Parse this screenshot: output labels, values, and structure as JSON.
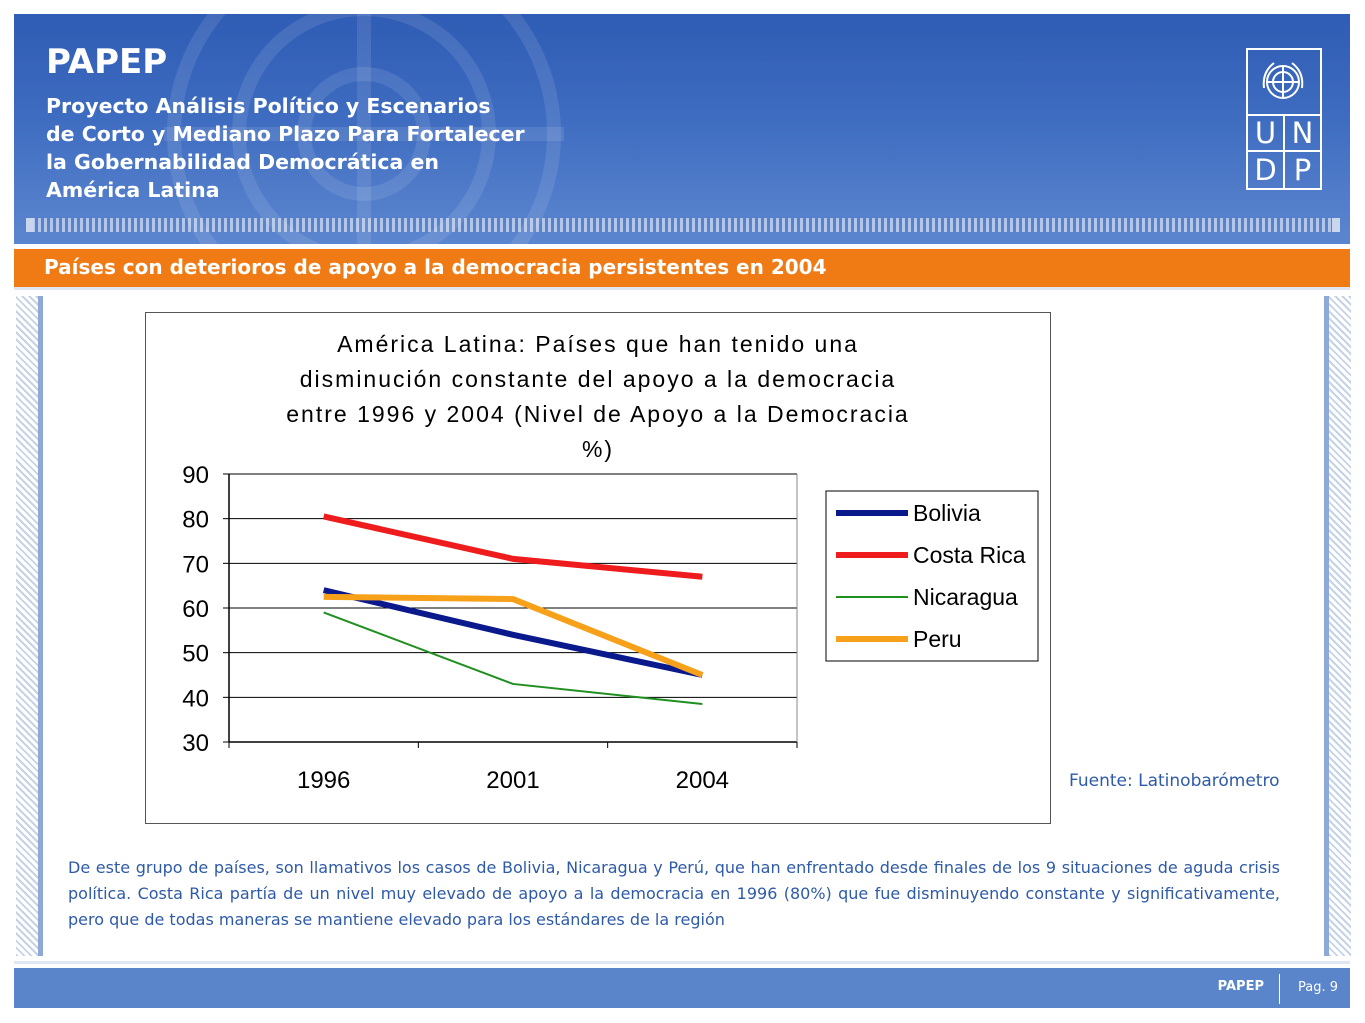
{
  "header": {
    "brand": "PAPEP",
    "subtitle_lines": [
      "Proyecto Análisis Político y Escenarios",
      "de Corto y Mediano Plazo Para Fortalecer",
      "la Gobernabilidad Democrática en",
      "América Latina"
    ],
    "logo_letters": [
      "U",
      "N",
      "D",
      "P"
    ]
  },
  "section": {
    "title": "Países con deterioros de apoyo a la democracia persistentes en 2004"
  },
  "chart_data": {
    "type": "line",
    "title_lines": [
      "América Latina:  Países que han tenido una",
      "disminución constante del apoyo a la democracia",
      "entre 1996 y 2004 (Nivel de Apoyo a la Democracia",
      "%)"
    ],
    "categories": [
      "1996",
      "2001",
      "2004"
    ],
    "ylim": [
      30,
      90
    ],
    "yticks": [
      90,
      80,
      70,
      60,
      50,
      40,
      30
    ],
    "grid": true,
    "legend_position": "right",
    "series": [
      {
        "name": "Bolivia",
        "values": [
          64,
          54,
          45
        ],
        "color": "#0a1a8c",
        "width": 6
      },
      {
        "name": "Costa Rica",
        "values": [
          80.5,
          71,
          67
        ],
        "color": "#ee1c1c",
        "width": 6
      },
      {
        "name": "Nicaragua",
        "values": [
          59,
          43,
          38.5
        ],
        "color": "#1f8f1f",
        "width": 2
      },
      {
        "name": "Peru",
        "values": [
          62.5,
          62,
          45
        ],
        "color": "#f7a11a",
        "width": 6
      }
    ]
  },
  "source": "Fuente: Latinobarómetro",
  "body": "De este grupo de países, son llamativos los casos de Bolivia, Nicaragua y Perú, que han enfrentado desde finales de los 9 situaciones de aguda crisis política. Costa Rica partía de un nivel muy elevado de apoyo a la democracia en 1996 (80%) que fue disminuyendo constante y significativamente, pero que de todas maneras se mantiene elevado para los estándares de la región",
  "footer": {
    "brand": "PAPEP",
    "page": "Pag. 9"
  }
}
